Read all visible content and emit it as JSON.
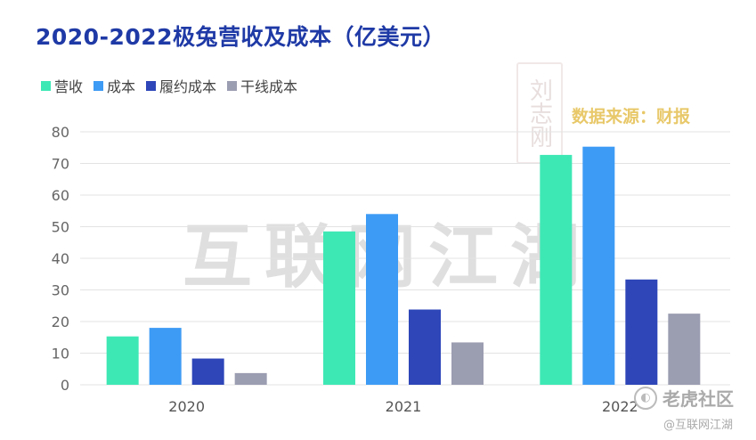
{
  "header": {
    "title": "2020-2022极兔营收及成本（亿美元）",
    "source": "数据来源：财报"
  },
  "watermark": {
    "main_text": "互联网江湖",
    "seal_text": "刘志刚",
    "brand": "老虎社区",
    "handle": "@互联网江湖"
  },
  "chart_data": {
    "type": "bar",
    "title": "2020-2022极兔营收及成本（亿美元）",
    "xlabel": "",
    "ylabel": "",
    "categories": [
      "2020",
      "2021",
      "2022"
    ],
    "ylim": [
      0,
      80
    ],
    "yticks": [
      0,
      10,
      20,
      30,
      40,
      50,
      60,
      70,
      80
    ],
    "grid": true,
    "legend_position": "top-left",
    "series": [
      {
        "name": "营收",
        "color": "#3ee8b5",
        "values": [
          15.3,
          48.5,
          72.7
        ]
      },
      {
        "name": "成本",
        "color": "#3d9bf5",
        "values": [
          18.0,
          54.0,
          75.3
        ]
      },
      {
        "name": "履约成本",
        "color": "#2e46b8",
        "values": [
          8.3,
          23.8,
          33.3
        ]
      },
      {
        "name": "干线成本",
        "color": "#9b9db1",
        "values": [
          3.7,
          13.4,
          22.5
        ]
      }
    ]
  }
}
